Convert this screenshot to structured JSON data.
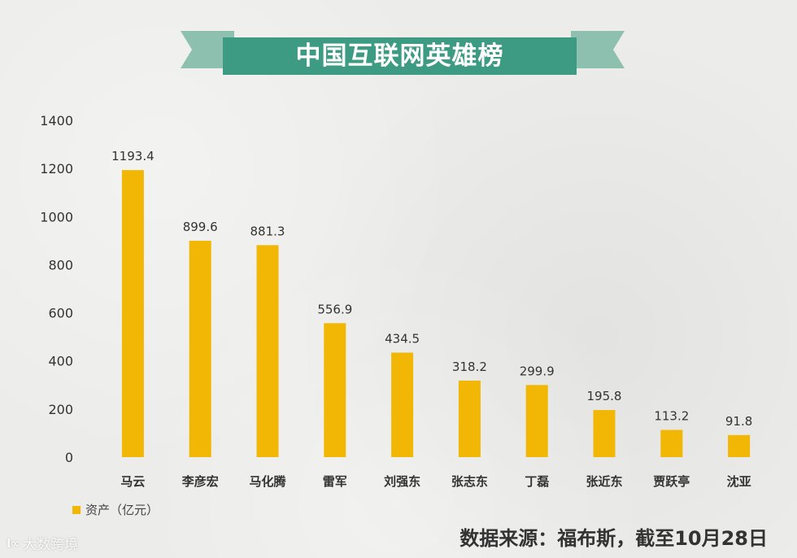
{
  "title": "中国互联网英雄榜",
  "legend": {
    "label": "资产（亿元）",
    "color": "#f2b705"
  },
  "source": "数据来源：福布斯，截至10月28日",
  "watermark": "大数跨境",
  "colors": {
    "bar": "#f2b705",
    "ribbon": "#3d9a83",
    "ribbon_tail": "#8ec0b0"
  },
  "chart_data": {
    "type": "bar",
    "title": "中国互联网英雄榜",
    "xlabel": "",
    "ylabel": "",
    "categories": [
      "马云",
      "李彦宏",
      "马化腾",
      "雷军",
      "刘强东",
      "张志东",
      "丁磊",
      "张近东",
      "贾跃亭",
      "沈亚"
    ],
    "series": [
      {
        "name": "资产（亿元）",
        "values": [
          1193.4,
          899.6,
          881.3,
          556.9,
          434.5,
          318.2,
          299.9,
          195.8,
          113.2,
          91.8
        ]
      }
    ],
    "ylim": [
      0,
      1400
    ],
    "yticks": [
      0,
      200,
      400,
      600,
      800,
      1000,
      1200,
      1400
    ],
    "grid": false,
    "legend_position": "bottom-left"
  }
}
